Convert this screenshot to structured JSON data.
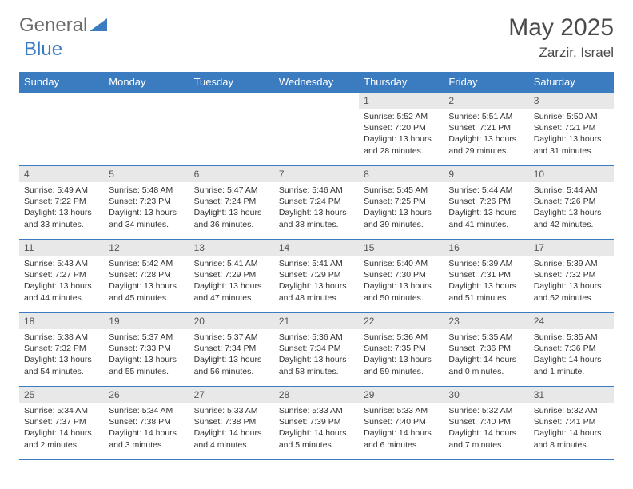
{
  "logo": {
    "text1": "General",
    "text2": "Blue"
  },
  "colors": {
    "header_bg": "#3b7bbf",
    "header_text": "#ffffff",
    "daynum_bg": "#e8e8e8",
    "daynum_text": "#555555",
    "body_text": "#333333",
    "border": "#3b7bbf",
    "title_text": "#4a4a4a",
    "logo_gray": "#6b6b6b",
    "logo_blue": "#3b7bbf"
  },
  "title": "May 2025",
  "location": "Zarzir, Israel",
  "weekdays": [
    "Sunday",
    "Monday",
    "Tuesday",
    "Wednesday",
    "Thursday",
    "Friday",
    "Saturday"
  ],
  "weeks": [
    [
      null,
      null,
      null,
      null,
      {
        "n": "1",
        "sr": "5:52 AM",
        "ss": "7:20 PM",
        "dl": "13 hours and 28 minutes."
      },
      {
        "n": "2",
        "sr": "5:51 AM",
        "ss": "7:21 PM",
        "dl": "13 hours and 29 minutes."
      },
      {
        "n": "3",
        "sr": "5:50 AM",
        "ss": "7:21 PM",
        "dl": "13 hours and 31 minutes."
      }
    ],
    [
      {
        "n": "4",
        "sr": "5:49 AM",
        "ss": "7:22 PM",
        "dl": "13 hours and 33 minutes."
      },
      {
        "n": "5",
        "sr": "5:48 AM",
        "ss": "7:23 PM",
        "dl": "13 hours and 34 minutes."
      },
      {
        "n": "6",
        "sr": "5:47 AM",
        "ss": "7:24 PM",
        "dl": "13 hours and 36 minutes."
      },
      {
        "n": "7",
        "sr": "5:46 AM",
        "ss": "7:24 PM",
        "dl": "13 hours and 38 minutes."
      },
      {
        "n": "8",
        "sr": "5:45 AM",
        "ss": "7:25 PM",
        "dl": "13 hours and 39 minutes."
      },
      {
        "n": "9",
        "sr": "5:44 AM",
        "ss": "7:26 PM",
        "dl": "13 hours and 41 minutes."
      },
      {
        "n": "10",
        "sr": "5:44 AM",
        "ss": "7:26 PM",
        "dl": "13 hours and 42 minutes."
      }
    ],
    [
      {
        "n": "11",
        "sr": "5:43 AM",
        "ss": "7:27 PM",
        "dl": "13 hours and 44 minutes."
      },
      {
        "n": "12",
        "sr": "5:42 AM",
        "ss": "7:28 PM",
        "dl": "13 hours and 45 minutes."
      },
      {
        "n": "13",
        "sr": "5:41 AM",
        "ss": "7:29 PM",
        "dl": "13 hours and 47 minutes."
      },
      {
        "n": "14",
        "sr": "5:41 AM",
        "ss": "7:29 PM",
        "dl": "13 hours and 48 minutes."
      },
      {
        "n": "15",
        "sr": "5:40 AM",
        "ss": "7:30 PM",
        "dl": "13 hours and 50 minutes."
      },
      {
        "n": "16",
        "sr": "5:39 AM",
        "ss": "7:31 PM",
        "dl": "13 hours and 51 minutes."
      },
      {
        "n": "17",
        "sr": "5:39 AM",
        "ss": "7:32 PM",
        "dl": "13 hours and 52 minutes."
      }
    ],
    [
      {
        "n": "18",
        "sr": "5:38 AM",
        "ss": "7:32 PM",
        "dl": "13 hours and 54 minutes."
      },
      {
        "n": "19",
        "sr": "5:37 AM",
        "ss": "7:33 PM",
        "dl": "13 hours and 55 minutes."
      },
      {
        "n": "20",
        "sr": "5:37 AM",
        "ss": "7:34 PM",
        "dl": "13 hours and 56 minutes."
      },
      {
        "n": "21",
        "sr": "5:36 AM",
        "ss": "7:34 PM",
        "dl": "13 hours and 58 minutes."
      },
      {
        "n": "22",
        "sr": "5:36 AM",
        "ss": "7:35 PM",
        "dl": "13 hours and 59 minutes."
      },
      {
        "n": "23",
        "sr": "5:35 AM",
        "ss": "7:36 PM",
        "dl": "14 hours and 0 minutes."
      },
      {
        "n": "24",
        "sr": "5:35 AM",
        "ss": "7:36 PM",
        "dl": "14 hours and 1 minute."
      }
    ],
    [
      {
        "n": "25",
        "sr": "5:34 AM",
        "ss": "7:37 PM",
        "dl": "14 hours and 2 minutes."
      },
      {
        "n": "26",
        "sr": "5:34 AM",
        "ss": "7:38 PM",
        "dl": "14 hours and 3 minutes."
      },
      {
        "n": "27",
        "sr": "5:33 AM",
        "ss": "7:38 PM",
        "dl": "14 hours and 4 minutes."
      },
      {
        "n": "28",
        "sr": "5:33 AM",
        "ss": "7:39 PM",
        "dl": "14 hours and 5 minutes."
      },
      {
        "n": "29",
        "sr": "5:33 AM",
        "ss": "7:40 PM",
        "dl": "14 hours and 6 minutes."
      },
      {
        "n": "30",
        "sr": "5:32 AM",
        "ss": "7:40 PM",
        "dl": "14 hours and 7 minutes."
      },
      {
        "n": "31",
        "sr": "5:32 AM",
        "ss": "7:41 PM",
        "dl": "14 hours and 8 minutes."
      }
    ]
  ],
  "labels": {
    "sunrise": "Sunrise: ",
    "sunset": "Sunset: ",
    "daylight": "Daylight: "
  }
}
